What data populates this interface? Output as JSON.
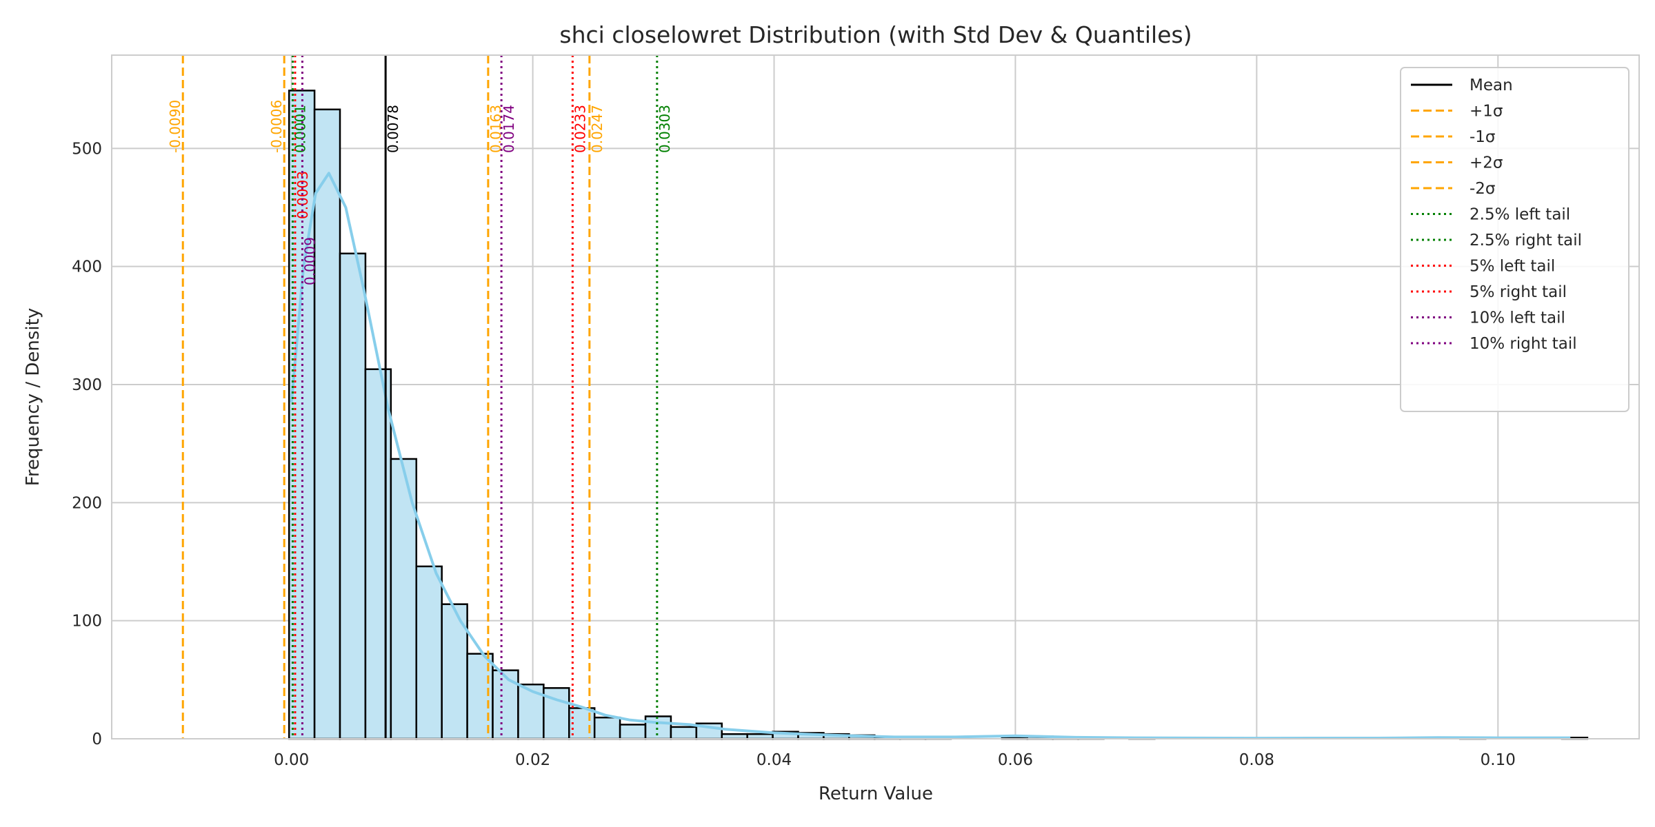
{
  "chart_data": {
    "type": "bar",
    "title": "shci closelowret Distribution (with Std Dev & Quantiles)",
    "xlabel": "Return Value",
    "ylabel": "Frequency / Density",
    "xlim": [
      -0.0149,
      0.1117
    ],
    "ylim": [
      0,
      579
    ],
    "xticks": [
      0.0,
      0.02,
      0.04,
      0.06,
      0.08,
      0.1
    ],
    "xtick_labels": [
      "0.00",
      "0.02",
      "0.04",
      "0.06",
      "0.08",
      "0.10"
    ],
    "yticks": [
      0,
      100,
      200,
      300,
      400,
      500
    ],
    "ytick_labels": [
      "0",
      "100",
      "200",
      "300",
      "400",
      "500"
    ],
    "grid": true,
    "histogram": {
      "bin_start": -0.0002,
      "bin_width": 0.00211,
      "counts": [
        549,
        533,
        411,
        313,
        237,
        146,
        114,
        72,
        58,
        46,
        43,
        26,
        18,
        12,
        19,
        10,
        13,
        4,
        4,
        6,
        5,
        4,
        3,
        1,
        1,
        1,
        0,
        0,
        1,
        2,
        1,
        1,
        0,
        1,
        0,
        0,
        0,
        0,
        0,
        0,
        0,
        0,
        0,
        0,
        0,
        0,
        1,
        0,
        0,
        0,
        1
      ],
      "fill": "#c1e4f3",
      "edge": "#000000"
    },
    "kde": {
      "color": "#87ceeb",
      "x": [
        0.0,
        0.001,
        0.002,
        0.0031,
        0.0045,
        0.006,
        0.008,
        0.01,
        0.012,
        0.014,
        0.016,
        0.018,
        0.02,
        0.022,
        0.024,
        0.026,
        0.028,
        0.03,
        0.033,
        0.036,
        0.04,
        0.045,
        0.05,
        0.055,
        0.06,
        0.065,
        0.07,
        0.08,
        0.09,
        0.095,
        0.1,
        0.106
      ],
      "y": [
        285,
        400,
        462,
        479,
        450,
        380,
        280,
        200,
        140,
        100,
        70,
        50,
        40,
        33,
        27,
        20,
        16,
        14,
        12,
        8,
        5,
        3,
        1.5,
        1.5,
        2.5,
        1.2,
        0.8,
        0.5,
        0.6,
        1,
        0.8,
        0.8
      ]
    },
    "vlines": [
      {
        "value": 0.0078,
        "label": "0.0078",
        "color": "#000000",
        "style": "solid"
      },
      {
        "value": 0.0163,
        "label": "0.0163",
        "color": "#ffa500",
        "style": "dashed"
      },
      {
        "value": -0.0006,
        "label": "-0.0006",
        "color": "#ffa500",
        "style": "dashed"
      },
      {
        "value": 0.0247,
        "label": "0.0247",
        "color": "#ffa500",
        "style": "dashed"
      },
      {
        "value": -0.009,
        "label": "-0.0090",
        "color": "#ffa500",
        "style": "dashed"
      },
      {
        "value": 0.0001,
        "label": "0.0001",
        "color": "#008000",
        "style": "dotted"
      },
      {
        "value": 0.0303,
        "label": "0.0303",
        "color": "#008000",
        "style": "dotted"
      },
      {
        "value": 0.0003,
        "label": "0.0003",
        "color": "#ff0000",
        "style": "dotted"
      },
      {
        "value": 0.0233,
        "label": "0.0233",
        "color": "#ff0000",
        "style": "dotted"
      },
      {
        "value": 0.0009,
        "label": "0.0009",
        "color": "#800080",
        "style": "dotted"
      },
      {
        "value": 0.0174,
        "label": "0.0174",
        "color": "#800080",
        "style": "dotted"
      }
    ],
    "legend_position": "top-right",
    "legend": [
      {
        "label": "Mean",
        "color": "#000000",
        "style": "solid"
      },
      {
        "label": "+1σ",
        "color": "#ffa500",
        "style": "dashed"
      },
      {
        "label": "-1σ",
        "color": "#ffa500",
        "style": "dashed"
      },
      {
        "label": "+2σ",
        "color": "#ffa500",
        "style": "dashed"
      },
      {
        "label": "-2σ",
        "color": "#ffa500",
        "style": "dashed"
      },
      {
        "label": "2.5% left tail",
        "color": "#008000",
        "style": "dotted"
      },
      {
        "label": "2.5% right tail",
        "color": "#008000",
        "style": "dotted"
      },
      {
        "label": "5% left tail",
        "color": "#ff0000",
        "style": "dotted"
      },
      {
        "label": "5% right tail",
        "color": "#ff0000",
        "style": "dotted"
      },
      {
        "label": "10% left tail",
        "color": "#800080",
        "style": "dotted"
      },
      {
        "label": "10% right tail",
        "color": "#800080",
        "style": "dotted"
      }
    ]
  }
}
